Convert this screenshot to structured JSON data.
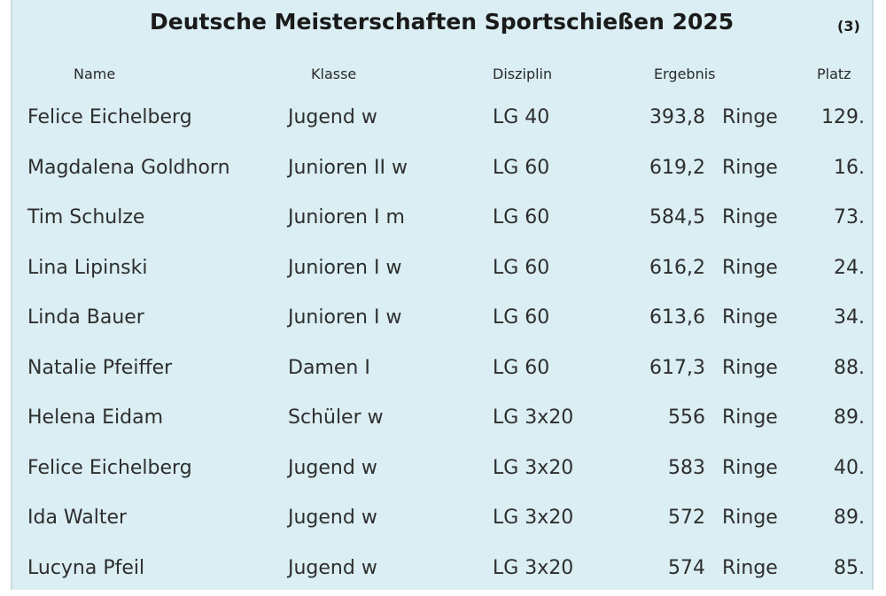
{
  "title": "Deutsche Meisterschaften Sportschießen 2025",
  "page_number": "(3)",
  "columns": {
    "name": "Name",
    "klasse": "Klasse",
    "disziplin": "Disziplin",
    "ergebnis": "Ergebnis",
    "platz": "Platz"
  },
  "rows": [
    {
      "name": "Felice Eichelberg",
      "klasse": "Jugend w",
      "disziplin": "LG 40",
      "value": "393,8",
      "unit": "Ringe",
      "platz": "129."
    },
    {
      "name": "Magdalena Goldhorn",
      "klasse": "Junioren II w",
      "disziplin": "LG 60",
      "value": "619,2",
      "unit": "Ringe",
      "platz": "16."
    },
    {
      "name": "Tim Schulze",
      "klasse": "Junioren I m",
      "disziplin": "LG 60",
      "value": "584,5",
      "unit": "Ringe",
      "platz": "73."
    },
    {
      "name": "Lina Lipinski",
      "klasse": "Junioren I w",
      "disziplin": "LG 60",
      "value": "616,2",
      "unit": "Ringe",
      "platz": "24."
    },
    {
      "name": "Linda Bauer",
      "klasse": "Junioren I w",
      "disziplin": "LG 60",
      "value": "613,6",
      "unit": "Ringe",
      "platz": "34."
    },
    {
      "name": "Natalie Pfeiffer",
      "klasse": "Damen I",
      "disziplin": "LG 60",
      "value": "617,3",
      "unit": "Ringe",
      "platz": "88."
    },
    {
      "name": "Helena Eidam",
      "klasse": "Schüler w",
      "disziplin": "LG 3x20",
      "value": "556",
      "unit": "Ringe",
      "platz": "89."
    },
    {
      "name": "Felice Eichelberg",
      "klasse": "Jugend w",
      "disziplin": "LG 3x20",
      "value": "583",
      "unit": "Ringe",
      "platz": "40."
    },
    {
      "name": "Ida Walter",
      "klasse": "Jugend w",
      "disziplin": "LG 3x20",
      "value": "572",
      "unit": "Ringe",
      "platz": "89."
    },
    {
      "name": "Lucyna Pfeil",
      "klasse": "Jugend w",
      "disziplin": "LG 3x20",
      "value": "574",
      "unit": "Ringe",
      "platz": "85."
    }
  ]
}
